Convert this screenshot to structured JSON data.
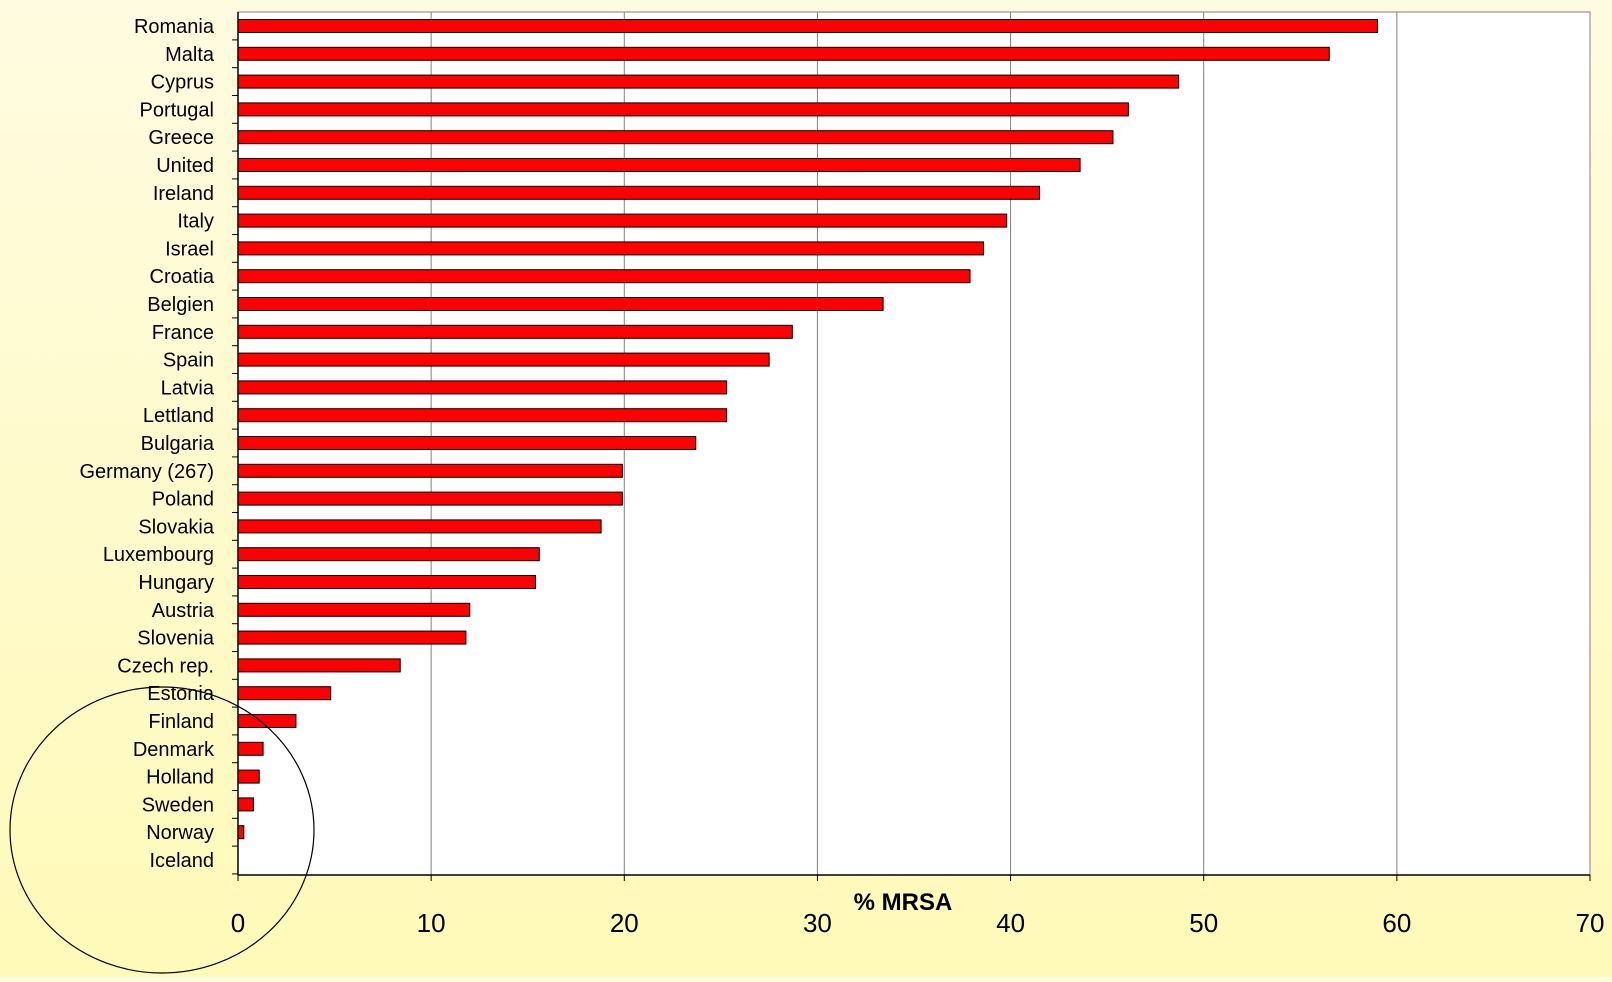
{
  "chart_data": {
    "type": "bar",
    "orientation": "horizontal",
    "categories": [
      "Romania",
      "Malta",
      "Cyprus",
      "Portugal",
      "Greece",
      "United",
      "Ireland",
      "Italy",
      "Israel",
      "Croatia",
      "Belgien",
      "France",
      "Spain",
      "Latvia",
      "Lettland",
      "Bulgaria",
      "Germany (267)",
      "Poland",
      "Slovakia",
      "Luxembourg",
      "Hungary",
      "Austria",
      "Slovenia",
      "Czech rep.",
      "Estonia",
      "Finland",
      "Denmark",
      "Holland",
      "Sweden",
      "Norway",
      "Iceland"
    ],
    "values": [
      59.0,
      56.5,
      48.7,
      46.1,
      45.3,
      43.6,
      41.5,
      39.8,
      38.6,
      37.9,
      33.4,
      28.7,
      27.5,
      25.3,
      25.3,
      23.7,
      19.9,
      19.9,
      18.8,
      15.6,
      15.4,
      12.0,
      11.8,
      8.4,
      4.8,
      3.0,
      1.3,
      1.1,
      0.8,
      0.3,
      0.0
    ],
    "xlabel": "% MRSA",
    "xlim": [
      0,
      70
    ],
    "xticks": [
      0,
      10,
      20,
      30,
      40,
      50,
      60,
      70
    ],
    "grid": true,
    "bar_color": "#ff0000",
    "plot_background": "#ffffff",
    "annotation": "ellipse circling the lowest-value countries"
  }
}
